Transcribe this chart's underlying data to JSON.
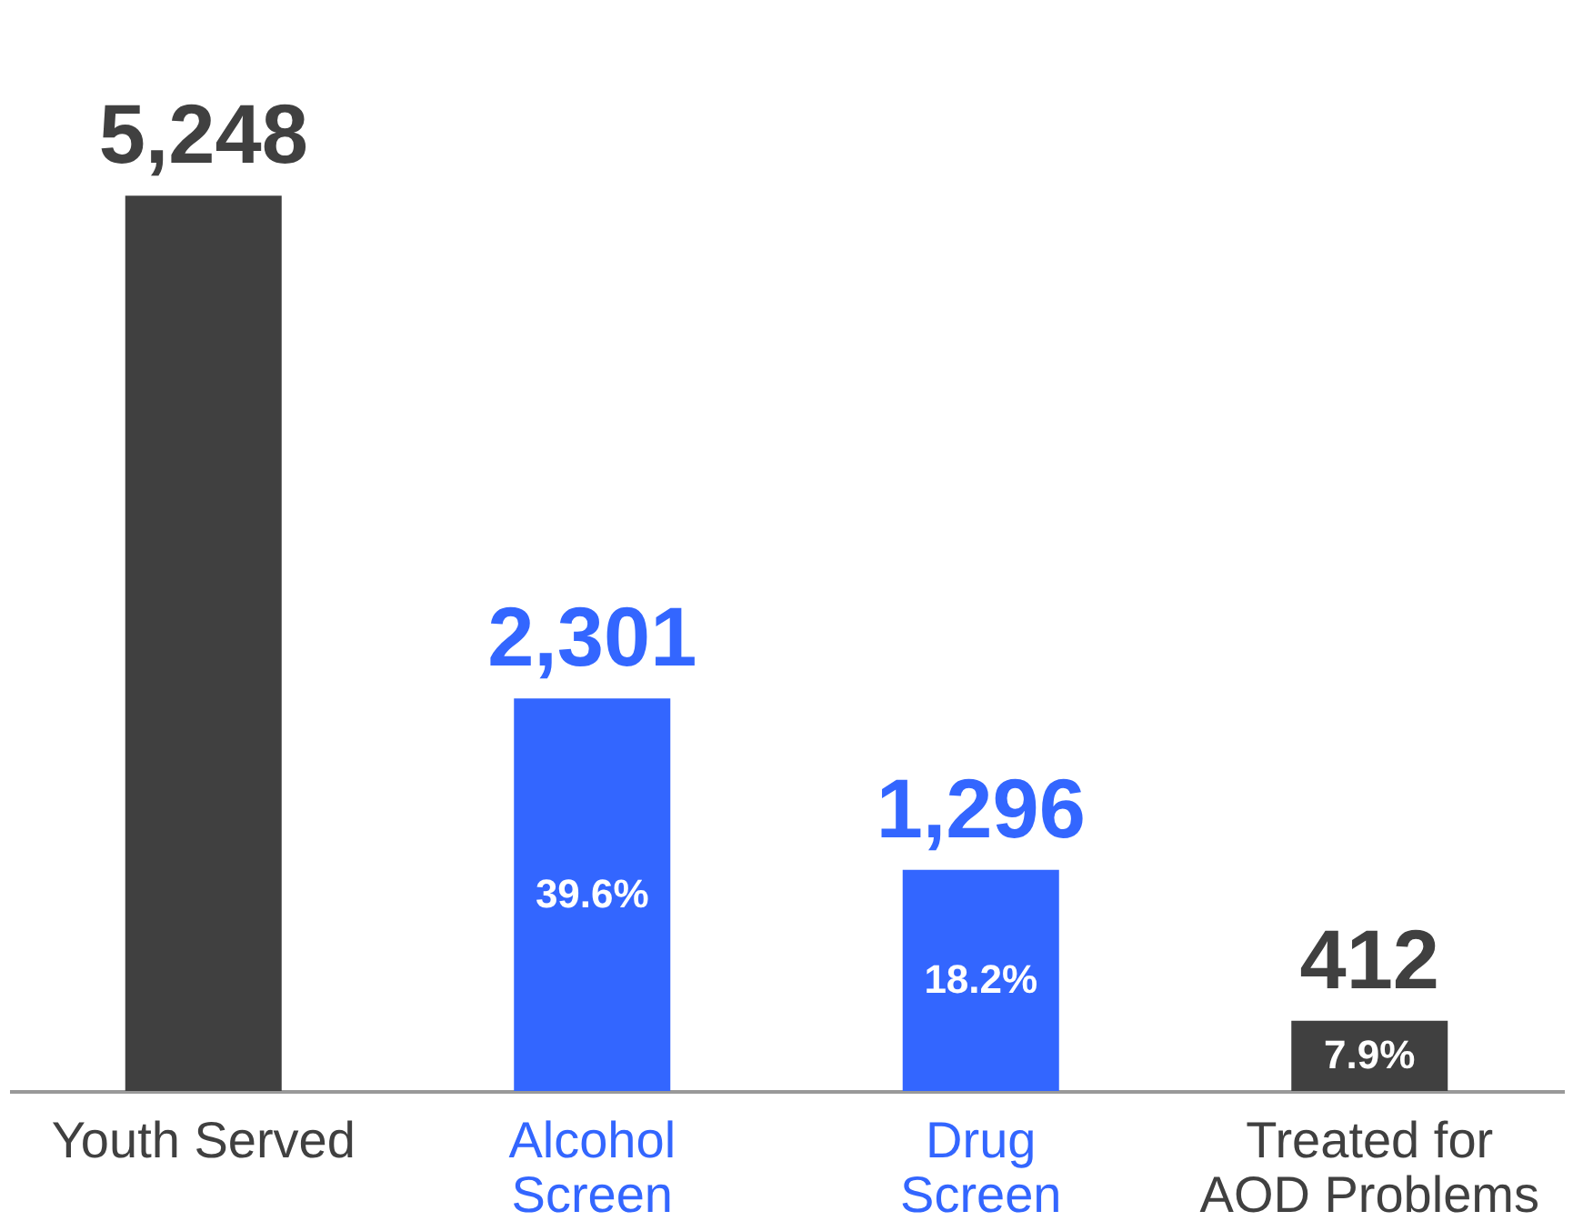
{
  "chart_data": {
    "type": "bar",
    "categories": [
      "Youth Served",
      "Alcohol\nScreen",
      "Drug\nScreen",
      "Treated for\nAOD Problems"
    ],
    "values": [
      5248,
      2301,
      1296,
      412
    ],
    "colors": [
      "#404040",
      "#3366ff",
      "#3366ff",
      "#404040"
    ],
    "value_labels": [
      "5,248",
      "2,301",
      "1,296",
      "412"
    ],
    "annotations": [
      "39.6%",
      "18.2%",
      "7.9%"
    ],
    "grid": false
  }
}
